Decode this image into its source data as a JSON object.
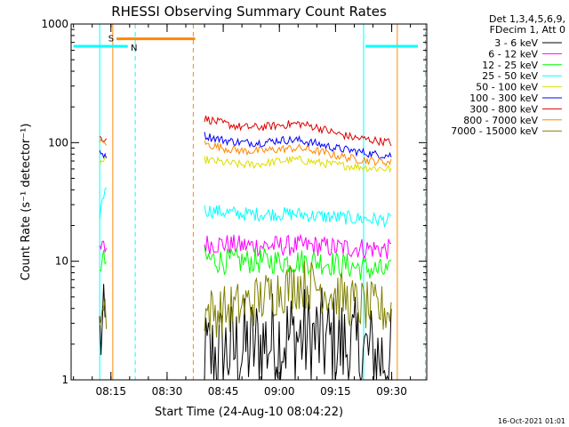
{
  "chart_data": {
    "type": "line",
    "title": "RHESSI Observing Summary Count Rates",
    "xlabel": "Start Time (24-Aug-10 08:04:22)",
    "ylabel": "Count Rate (s⁻¹ detector⁻¹)",
    "yscale": "log",
    "ylim": [
      1,
      1000
    ],
    "xlim": [
      "08:04:22",
      "09:39:22"
    ],
    "x_tick_labels": [
      "08:15",
      "08:30",
      "08:45",
      "09:00",
      "09:15",
      "09:30"
    ],
    "y_tick_labels": [
      "1",
      "10",
      "100",
      "1000"
    ],
    "legend_header": [
      "Det 1,3,4,5,6,9,",
      "FDecim 1, Att 0"
    ],
    "legend_position": "right",
    "timestamp": "16-Oct-2021 01:01",
    "flags": [
      {
        "label": "S",
        "start": "08:16:30",
        "end": "08:37:30",
        "level": 750,
        "color": "#ff8800"
      },
      {
        "label": "N",
        "start": "08:05:00",
        "end": "08:19:30",
        "level": 650,
        "color": "#00ffff"
      },
      {
        "label": "",
        "start": "09:23:00",
        "end": "09:37:00",
        "level": 650,
        "color": "#00ffff"
      }
    ],
    "vertical_lines": [
      {
        "time": "08:12:00",
        "color": "#00ffff",
        "style": "solid"
      },
      {
        "time": "08:15:30",
        "color": "#ff8800",
        "style": "solid"
      },
      {
        "time": "08:21:30",
        "color": "#00ffff",
        "style": "dashed"
      },
      {
        "time": "08:37:00",
        "color": "#ff8800",
        "style": "dashed"
      },
      {
        "time": "09:22:30",
        "color": "#00ffff",
        "style": "solid"
      },
      {
        "time": "09:31:30",
        "color": "#ff8800",
        "style": "solid"
      },
      {
        "time": "09:39:00",
        "color": "#00ffff",
        "style": "dashed"
      }
    ],
    "series": [
      {
        "name": "3 - 6 keV",
        "color": "#000000",
        "segments": [
          {
            "x": [
              "08:12:00",
              "08:13:00",
              "08:14:00"
            ],
            "y": [
              2.5,
              2.3,
              2.4
            ]
          },
          {
            "x": [
              "08:40:00",
              "08:45:00",
              "08:50:00",
              "08:55:00",
              "09:00:00",
              "09:05:00",
              "09:10:00",
              "09:15:00",
              "09:20:00",
              "09:25:00",
              "09:30:00"
            ],
            "y": [
              1.5,
              1.7,
              1.8,
              2.0,
              2.2,
              2.3,
              2.2,
              2.0,
              1.8,
              1.6,
              1.5
            ]
          }
        ]
      },
      {
        "name": "6 - 12 keV",
        "color": "#ff00ff",
        "segments": [
          {
            "x": [
              "08:12:00",
              "08:13:00",
              "08:14:00"
            ],
            "y": [
              12.5,
              13,
              13
            ]
          },
          {
            "x": [
              "08:40:00",
              "08:45:00",
              "08:50:00",
              "08:55:00",
              "09:00:00",
              "09:05:00",
              "09:10:00",
              "09:15:00",
              "09:20:00",
              "09:25:00",
              "09:30:00"
            ],
            "y": [
              14,
              14,
              13.5,
              13.5,
              13.5,
              13.5,
              13.5,
              13,
              13,
              12.8,
              12.5
            ]
          }
        ]
      },
      {
        "name": "12 - 25 keV",
        "color": "#00ff00",
        "segments": [
          {
            "x": [
              "08:12:00",
              "08:13:00",
              "08:14:00"
            ],
            "y": [
              9.5,
              10,
              10
            ]
          },
          {
            "x": [
              "08:40:00",
              "08:45:00",
              "08:50:00",
              "08:55:00",
              "09:00:00",
              "09:05:00",
              "09:10:00",
              "09:15:00",
              "09:20:00",
              "09:25:00",
              "09:30:00"
            ],
            "y": [
              10.5,
              10,
              10,
              10,
              10,
              10,
              10,
              9.5,
              9,
              8.5,
              8
            ]
          }
        ]
      },
      {
        "name": "25 - 50 keV",
        "color": "#00ffff",
        "segments": [
          {
            "x": [
              "08:12:00",
              "08:13:00",
              "08:14:00"
            ],
            "y": [
              25,
              35,
              50
            ]
          },
          {
            "x": [
              "08:40:00",
              "08:45:00",
              "08:50:00",
              "08:55:00",
              "09:00:00",
              "09:05:00",
              "09:10:00",
              "09:15:00",
              "09:20:00",
              "09:25:00",
              "09:30:00"
            ],
            "y": [
              27,
              26,
              25,
              25,
              25,
              25,
              24,
              23.5,
              23,
              22.5,
              22
            ]
          }
        ]
      },
      {
        "name": "50 - 100 keV",
        "color": "#dddd00",
        "segments": [
          {
            "x": [
              "08:12:00",
              "08:13:00",
              "08:14:00"
            ],
            "y": [
              68,
              70,
              70
            ]
          },
          {
            "x": [
              "08:40:00",
              "08:45:00",
              "08:50:00",
              "08:55:00",
              "09:00:00",
              "09:05:00",
              "09:10:00",
              "09:15:00",
              "09:20:00",
              "09:25:00",
              "09:30:00"
            ],
            "y": [
              72,
              68,
              65,
              66,
              70,
              72,
              68,
              65,
              63,
              61,
              60
            ]
          }
        ]
      },
      {
        "name": "100 - 300 keV",
        "color": "#0000ff",
        "segments": [
          {
            "x": [
              "08:12:00",
              "08:13:00",
              "08:14:00"
            ],
            "y": [
              80,
              80,
              80
            ]
          },
          {
            "x": [
              "08:40:00",
              "08:45:00",
              "08:50:00",
              "08:55:00",
              "09:00:00",
              "09:05:00",
              "09:10:00",
              "09:15:00",
              "09:20:00",
              "09:25:00",
              "09:30:00"
            ],
            "y": [
              115,
              105,
              100,
              100,
              105,
              105,
              98,
              90,
              85,
              80,
              78
            ]
          }
        ]
      },
      {
        "name": "300 - 800 keV",
        "color": "#dd0000",
        "segments": [
          {
            "x": [
              "08:12:00",
              "08:13:00",
              "08:14:00"
            ],
            "y": [
              110,
              108,
              108
            ]
          },
          {
            "x": [
              "08:40:00",
              "08:45:00",
              "08:50:00",
              "08:55:00",
              "09:00:00",
              "09:05:00",
              "09:10:00",
              "09:15:00",
              "09:20:00",
              "09:25:00",
              "09:30:00"
            ],
            "y": [
              160,
              145,
              135,
              135,
              140,
              145,
              135,
              120,
              110,
              105,
              100
            ]
          }
        ]
      },
      {
        "name": "800 - 7000 keV",
        "color": "#ff8800",
        "segments": [
          {
            "x": [
              "08:12:00",
              "08:13:00",
              "08:14:00"
            ],
            "y": [
              100,
              100,
              100
            ]
          },
          {
            "x": [
              "08:40:00",
              "08:45:00",
              "08:50:00",
              "08:55:00",
              "09:00:00",
              "09:05:00",
              "09:10:00",
              "09:15:00",
              "09:20:00",
              "09:25:00",
              "09:30:00"
            ],
            "y": [
              98,
              90,
              85,
              85,
              88,
              90,
              85,
              78,
              73,
              70,
              68
            ]
          }
        ]
      },
      {
        "name": "7000 - 15000 keV",
        "color": "#808000",
        "segments": [
          {
            "x": [
              "08:12:00",
              "08:13:00",
              "08:14:00"
            ],
            "y": [
              4,
              4,
              4
            ]
          },
          {
            "x": [
              "08:40:00",
              "08:45:00",
              "08:50:00",
              "08:55:00",
              "09:00:00",
              "09:05:00",
              "09:10:00",
              "09:15:00",
              "09:20:00",
              "09:25:00",
              "09:30:00"
            ],
            "y": [
              3.7,
              3.8,
              4.2,
              4.8,
              5.8,
              6.5,
              6.2,
              5.2,
              4.4,
              4.0,
              3.8
            ]
          }
        ]
      }
    ]
  }
}
